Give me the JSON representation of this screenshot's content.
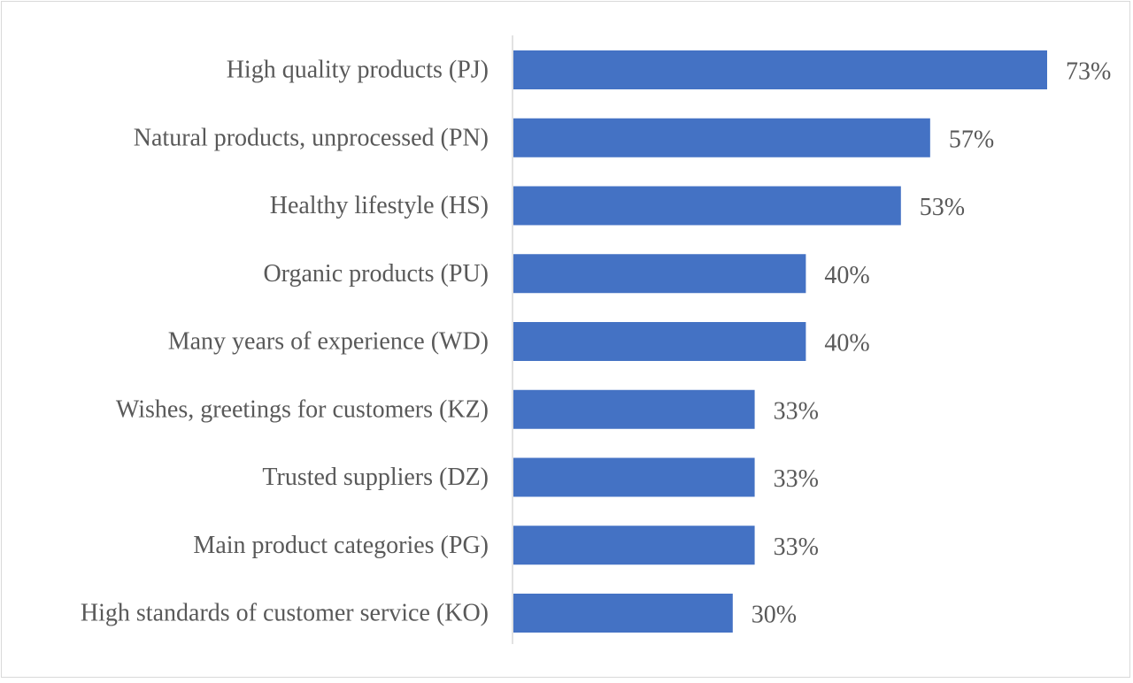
{
  "chart_data": {
    "type": "bar",
    "orientation": "horizontal",
    "title": "",
    "xlabel": "",
    "ylabel": "",
    "categories": [
      "High quality products (PJ)",
      "Natural products, unprocessed (PN)",
      "Healthy lifestyle (HS)",
      "Organic products (PU)",
      "Many years of experience (WD)",
      "Wishes, greetings for customers (KZ)",
      "Trusted suppliers (DZ)",
      "Main product categories (PG)",
      "High standards of customer service (KO)"
    ],
    "values": [
      73,
      57,
      53,
      40,
      40,
      33,
      33,
      33,
      30
    ],
    "value_labels": [
      "73%",
      "57%",
      "53%",
      "40%",
      "40%",
      "33%",
      "33%",
      "33%",
      "30%"
    ],
    "unit": "%",
    "xlim": [
      0,
      73
    ],
    "grid": false,
    "legend": "none",
    "colors": {
      "bar": "#4472c4",
      "axis": "#d9d9d9",
      "label": "#595959"
    }
  }
}
